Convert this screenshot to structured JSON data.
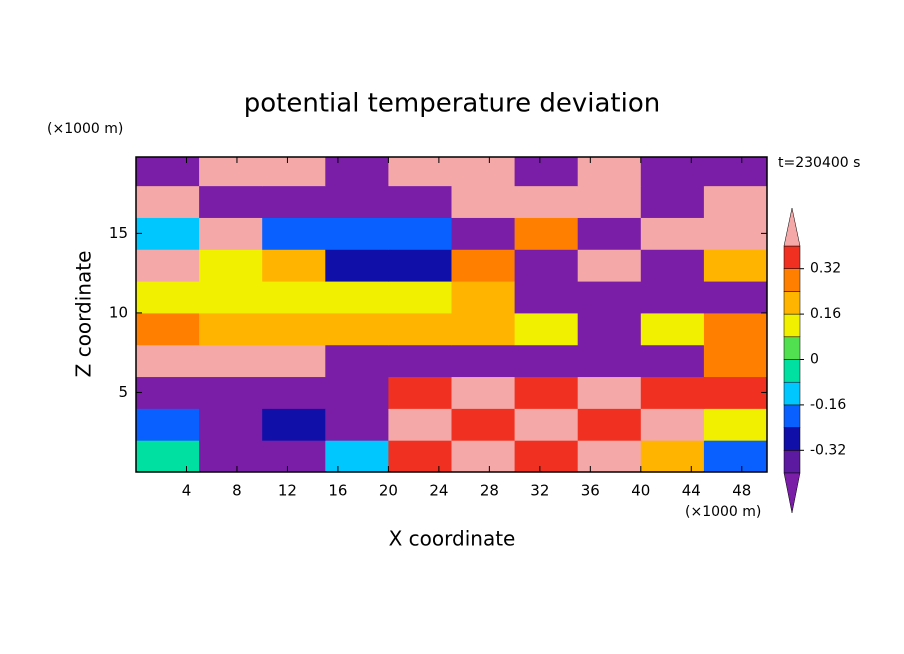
{
  "chart_data": {
    "type": "contour",
    "title": "potential temperature deviation",
    "x_label": "X coordinate",
    "y_label": "Z coordinate",
    "x_unit": "(×1000 m)",
    "y_unit": "(×1000 m)",
    "annotation": "t=230400 s",
    "xlim": [
      0,
      50
    ],
    "ylim": [
      0,
      19.8
    ],
    "xticks": [
      4,
      8,
      12,
      16,
      20,
      24,
      28,
      32,
      36,
      40,
      44,
      48
    ],
    "yticks": [
      5,
      10,
      15
    ],
    "field": {
      "x_edges": [
        0,
        5,
        10,
        15,
        20,
        25,
        30,
        35,
        40,
        45,
        50
      ],
      "y_edges": [
        0,
        2,
        4,
        6,
        8,
        10,
        12,
        14,
        16,
        18,
        19.8
      ],
      "values": [
        [
          0,
          -0.45,
          -0.45,
          -0.1,
          0.36,
          0.45,
          0.36,
          0.45,
          0.2,
          -0.2
        ],
        [
          -0.2,
          -0.45,
          -0.3,
          -0.45,
          0.45,
          0.36,
          0.45,
          0.36,
          0.45,
          0.1
        ],
        [
          -0.45,
          -0.45,
          -0.45,
          -0.45,
          0.36,
          0.45,
          0.36,
          0.45,
          0.36,
          0.36
        ],
        [
          0.45,
          0.45,
          0.45,
          -0.45,
          -0.45,
          -0.45,
          -0.45,
          -0.45,
          -0.45,
          0.3
        ],
        [
          0.3,
          0.2,
          0.2,
          0.2,
          0.2,
          0.2,
          0.15,
          -0.45,
          0.15,
          0.3
        ],
        [
          0.15,
          0.15,
          0.15,
          0.15,
          0.15,
          0.2,
          -0.45,
          -0.45,
          -0.45,
          -0.45
        ],
        [
          0.45,
          0.1,
          0.2,
          -0.3,
          -0.3,
          0.25,
          -0.45,
          0.45,
          -0.45,
          0.2
        ],
        [
          -0.1,
          0.45,
          -0.2,
          -0.2,
          -0.2,
          -0.45,
          0.3,
          -0.45,
          0.45,
          0.45
        ],
        [
          0.45,
          -0.45,
          -0.45,
          -0.45,
          -0.45,
          0.45,
          0.45,
          0.45,
          -0.45,
          0.45
        ],
        [
          -0.45,
          0.45,
          0.45,
          -0.45,
          0.45,
          0.45,
          -0.45,
          0.45,
          -0.45,
          -0.45
        ]
      ]
    },
    "colorbar": {
      "levels": [
        -0.4,
        -0.32,
        -0.24,
        -0.16,
        -0.08,
        0,
        0.08,
        0.16,
        0.24,
        0.32,
        0.4
      ],
      "colors": [
        "#5b1aa0",
        "#1010a8",
        "#0a60ff",
        "#00c8ff",
        "#00e0a0",
        "#50e050",
        "#f0f000",
        "#ffb400",
        "#ff8000",
        "#f03020"
      ],
      "under_color": "#7a1ea8",
      "over_color": "#f4a8a8",
      "ticks": [
        0.32,
        0.16,
        0,
        -0.16,
        -0.32
      ]
    }
  }
}
